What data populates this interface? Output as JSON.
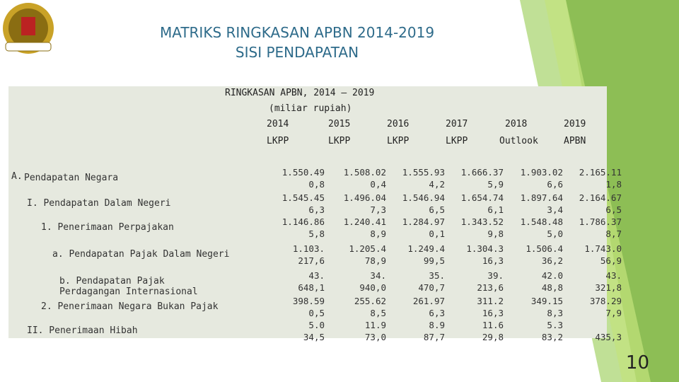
{
  "header": {
    "title": [
      "MATRIKS RINGKASAN APBN 2014-2019",
      "SISI PENDAPATAN"
    ]
  },
  "table": {
    "caption": [
      "RINGKASAN APBN, 2014 – 2019",
      "(miliar rupiah)"
    ],
    "years": [
      "2014",
      "2015",
      "2016",
      "2017",
      "2018",
      "2019"
    ],
    "status": [
      "LKPP",
      "LKPP",
      "LKPP",
      "LKPP",
      "Outlook",
      "APBN"
    ],
    "rows": [
      {
        "marker": "A.",
        "label": "Pendapatan Negara",
        "line1": [
          "1.550.49",
          "1.508.02",
          "1.555.93",
          "1.666.37",
          "1.903.02",
          "2.165.11"
        ],
        "line2": [
          "0,8",
          "0,4",
          "4,2",
          "5,9",
          "6,6",
          "1,8"
        ]
      },
      {
        "label": "I. Pendapatan Dalam Negeri",
        "line1": [
          "1.545.45",
          "1.496.04",
          "1.546.94",
          "1.654.74",
          "1.897.64",
          "2.164.67"
        ],
        "line2": [
          "6,3",
          "7,3",
          "6,5",
          "6,1",
          "3,4",
          "6,5"
        ]
      },
      {
        "label": "1. Penerimaan Perpajakan",
        "line1": [
          "1.146.86",
          "1.240.41",
          "1.284.97",
          "1.343.52",
          "1.548.48",
          "1.786.37"
        ],
        "line2": [
          "5,8",
          "8,9",
          "0,1",
          "9,8",
          "5,0",
          "8,7"
        ]
      },
      {
        "label": "a. Pendapatan Pajak Dalam Negeri",
        "line1": [
          "1.103.",
          "1.205.4",
          "1.249.4",
          "1.304.3",
          "1.506.4",
          "1.743.0"
        ],
        "line2": [
          "217,6",
          "78,9",
          "99,5",
          "16,3",
          "36,2",
          "56,9"
        ]
      },
      {
        "label": "b. Pendapatan Pajak Perdagangan Internasional",
        "line1": [
          "43.",
          "34.",
          "35.",
          "39.",
          "42.0",
          "43."
        ],
        "line2": [
          "648,1",
          "940,0",
          "470,7",
          "213,6",
          "48,8",
          "321,8"
        ]
      },
      {
        "label": "2. Penerimaan Negara Bukan Pajak",
        "line1": [
          "398.59",
          "255.62",
          "261.97",
          "311.2",
          "349.15",
          "378.29"
        ],
        "line2": [
          "0,5",
          "8,5",
          "6,3",
          "16,3",
          "8,3",
          "7,9"
        ]
      },
      {
        "label": "II. Penerimaan Hibah",
        "line1": [
          "5.0",
          "11.9",
          "8.9",
          "11.6",
          "5.3"
        ],
        "line2": [
          "34,5",
          "73,0",
          "87,7",
          "29,8",
          "83,2",
          "435,3"
        ]
      }
    ]
  },
  "footer": {
    "page": "10"
  }
}
